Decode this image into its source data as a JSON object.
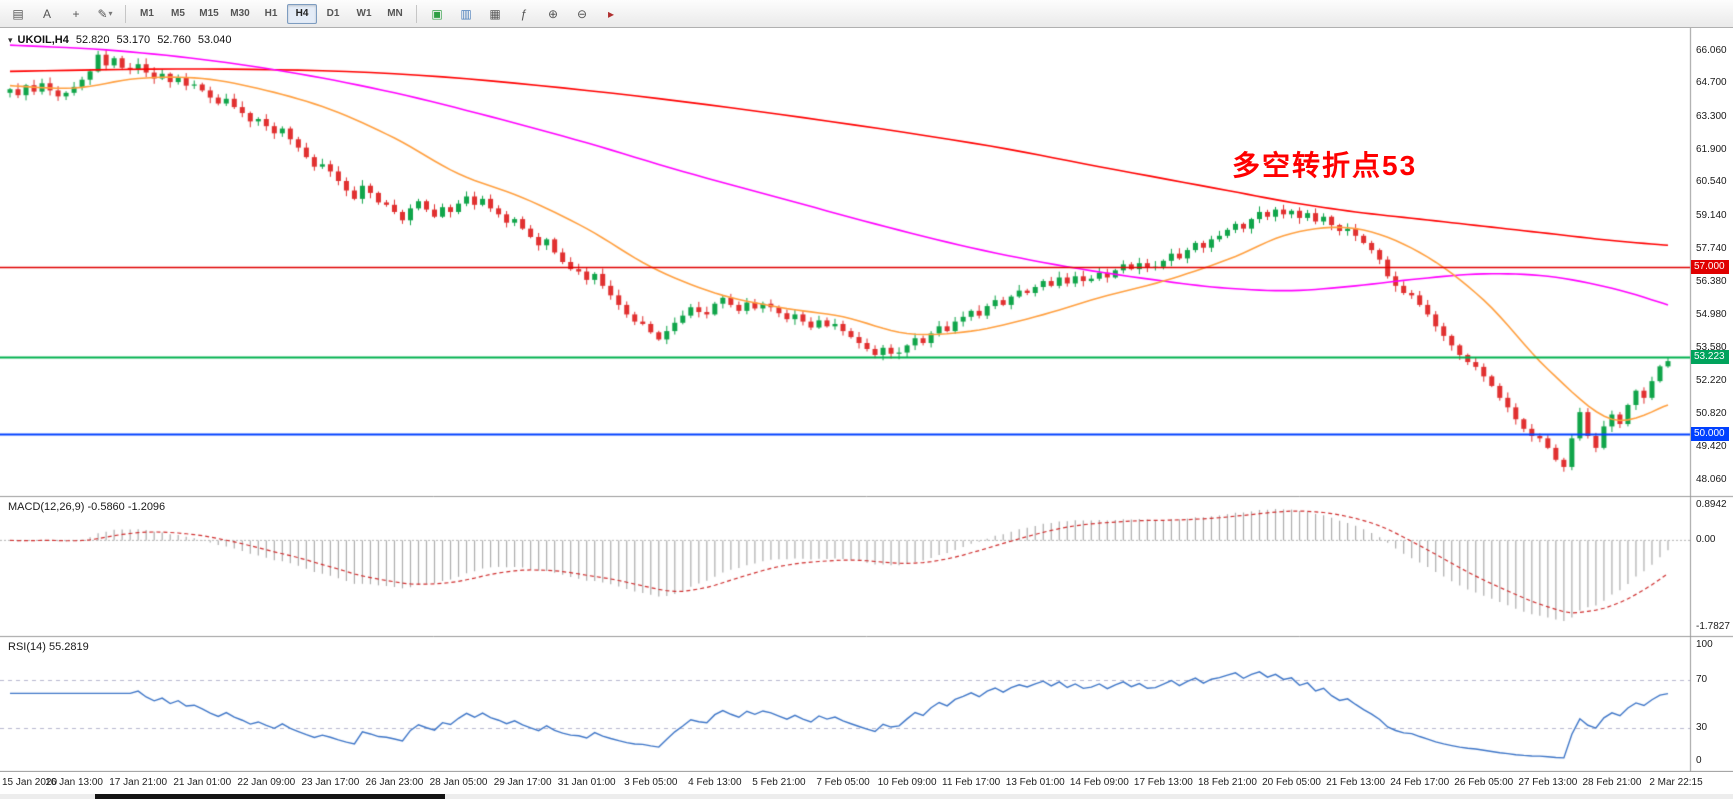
{
  "toolbar": {
    "icons_left": [
      {
        "name": "charts-panel-icon",
        "glyph": "▤"
      },
      {
        "name": "text-label-icon",
        "glyph": "A"
      },
      {
        "name": "crosshair-icon",
        "glyph": "+"
      },
      {
        "name": "draw-tools-icon",
        "glyph": "✎",
        "dropdown": "▾"
      }
    ],
    "timeframes": [
      "M1",
      "M5",
      "M15",
      "M30",
      "H1",
      "H4",
      "D1",
      "W1",
      "MN"
    ],
    "active_timeframe": "H4",
    "icons_right": [
      {
        "name": "new-chart-icon",
        "glyph": "▣",
        "color": "#2f9e44"
      },
      {
        "name": "chart-mode-icon",
        "glyph": "▥",
        "color": "#4a7ebb"
      },
      {
        "name": "tile-windows-icon",
        "glyph": "▦",
        "color": "#555555"
      },
      {
        "name": "indicators-icon",
        "glyph": "ƒ",
        "color": "#555555"
      },
      {
        "name": "zoom-in-icon",
        "glyph": "⊕",
        "color": "#555555"
      },
      {
        "name": "zoom-out-icon",
        "glyph": "⊖",
        "color": "#555555"
      },
      {
        "name": "auto-scroll-icon",
        "glyph": "▸",
        "color": "#b03030"
      }
    ]
  },
  "chart": {
    "collapse_icon": "▾",
    "title_symbol": "UKOIL,H4",
    "ohlc": {
      "open": "52.820",
      "high": "53.170",
      "low": "52.760",
      "close": "53.040"
    },
    "annotation": {
      "text": "多空转折点53",
      "color": "#FF0000"
    },
    "price_axis": [
      "66.060",
      "64.700",
      "63.300",
      "61.900",
      "60.540",
      "59.140",
      "57.740",
      "56.380",
      "54.980",
      "53.580",
      "52.220",
      "50.820",
      "49.420",
      "48.060"
    ],
    "price_tags": [
      {
        "label": "57.000",
        "price": 57.0,
        "bg": "#e00000"
      },
      {
        "label": "53.223",
        "price": 53.223,
        "bg": "#00a35c"
      },
      {
        "label": "50.000",
        "price": 50.0,
        "bg": "#0040ff"
      }
    ],
    "hlines": [
      {
        "price": 57.0,
        "color": "#e00000",
        "width": 1.4
      },
      {
        "price": 53.223,
        "color": "#00b14f",
        "width": 2
      },
      {
        "price": 50.0,
        "color": "#0040ff",
        "width": 2
      }
    ]
  },
  "macd_panel": {
    "label": "MACD(12,26,9)",
    "value_main": "-0.5860",
    "value_signal": "-1.2096",
    "axis": [
      "0.8942",
      "0.00",
      "-1.7827"
    ]
  },
  "rsi_panel": {
    "label": "RSI(14)",
    "value": "55.2819",
    "axis": [
      "100",
      "70",
      "30",
      "0"
    ]
  },
  "time_axis": [
    "15 Jan 2020",
    "16 Jan 13:00",
    "17 Jan 21:00",
    "21 Jan 01:00",
    "22 Jan 09:00",
    "23 Jan 17:00",
    "26 Jan 23:00",
    "28 Jan 05:00",
    "29 Jan 17:00",
    "31 Jan 01:00",
    "3 Feb 05:00",
    "4 Feb 13:00",
    "5 Feb 21:00",
    "7 Feb 05:00",
    "10 Feb 09:00",
    "11 Feb 17:00",
    "13 Feb 01:00",
    "14 Feb 09:00",
    "17 Feb 13:00",
    "18 Feb 21:00",
    "20 Feb 05:00",
    "21 Feb 13:00",
    "24 Feb 17:00",
    "26 Feb 05:00",
    "27 Feb 13:00",
    "28 Feb 21:00",
    "2 Mar 22:15"
  ],
  "chart_data": {
    "type": "candlestick+indicators",
    "symbol": "UKOIL",
    "timeframe": "H4",
    "price_range": [
      47.8,
      66.6
    ],
    "candles": {
      "first_open": 64.3,
      "up_color": "#10a54a",
      "down_color": "#e13030",
      "closes": [
        64.45,
        64.2,
        64.62,
        64.35,
        64.7,
        64.4,
        64.15,
        64.3,
        64.55,
        64.85,
        65.2,
        65.9,
        65.45,
        65.75,
        65.35,
        65.3,
        65.5,
        65.15,
        64.9,
        65.1,
        64.75,
        64.95,
        64.6,
        64.65,
        64.4,
        64.1,
        63.85,
        64.05,
        63.7,
        63.45,
        63.1,
        63.2,
        62.9,
        62.6,
        62.8,
        62.35,
        62.0,
        61.6,
        61.2,
        61.3,
        61.0,
        60.6,
        60.2,
        59.85,
        60.4,
        60.1,
        59.7,
        59.6,
        59.3,
        58.95,
        59.45,
        59.75,
        59.4,
        59.1,
        59.5,
        59.3,
        59.65,
        59.95,
        59.6,
        59.85,
        59.45,
        59.2,
        58.85,
        59.0,
        58.6,
        58.25,
        57.9,
        58.15,
        57.6,
        57.2,
        56.9,
        56.8,
        56.45,
        56.7,
        56.2,
        55.8,
        55.4,
        55.0,
        54.7,
        54.6,
        54.25,
        53.95,
        54.3,
        54.65,
        54.95,
        55.3,
        55.1,
        55.0,
        55.45,
        55.7,
        55.4,
        55.15,
        55.5,
        55.25,
        55.45,
        55.3,
        55.05,
        54.8,
        55.0,
        54.7,
        54.45,
        54.75,
        54.5,
        54.6,
        54.3,
        54.05,
        53.8,
        53.55,
        53.3,
        53.6,
        53.35,
        53.4,
        53.7,
        54.0,
        53.8,
        54.2,
        54.5,
        54.3,
        54.7,
        54.9,
        55.15,
        54.95,
        55.35,
        55.6,
        55.4,
        55.75,
        56.0,
        55.9,
        56.15,
        56.4,
        56.2,
        56.55,
        56.3,
        56.6,
        56.4,
        56.5,
        56.75,
        56.55,
        56.85,
        57.1,
        56.9,
        57.15,
        56.95,
        57.0,
        57.25,
        57.55,
        57.35,
        57.7,
        58.0,
        57.8,
        58.15,
        58.3,
        58.55,
        58.8,
        58.6,
        59.0,
        59.3,
        59.1,
        59.4,
        59.2,
        59.35,
        59.05,
        59.25,
        58.9,
        59.1,
        58.75,
        58.5,
        58.6,
        58.3,
        58.0,
        57.7,
        57.3,
        56.6,
        56.2,
        55.9,
        55.8,
        55.4,
        55.0,
        54.5,
        54.1,
        53.7,
        53.3,
        53.0,
        52.8,
        52.4,
        52.0,
        51.5,
        51.1,
        50.6,
        50.2,
        49.9,
        49.8,
        49.4,
        48.9,
        48.6,
        49.8,
        50.9,
        49.9,
        49.4,
        50.3,
        50.8,
        50.4,
        51.2,
        51.8,
        51.5,
        52.2,
        52.82,
        53.04
      ],
      "overrides": {
        "11": {
          "high": 66.06
        },
        "194": {
          "low": 48.4
        },
        "207": {
          "high": 53.17,
          "low": 52.76
        }
      }
    },
    "moving_averages": [
      {
        "name": "ma-slow",
        "color": "#ff0000",
        "anchors": [
          [
            0,
            65.2
          ],
          [
            24,
            65.3
          ],
          [
            48,
            65.1
          ],
          [
            72,
            64.4
          ],
          [
            96,
            63.4
          ],
          [
            120,
            62.2
          ],
          [
            136,
            61.2
          ],
          [
            152,
            60.2
          ],
          [
            160,
            59.7
          ],
          [
            168,
            59.3
          ],
          [
            176,
            59.0
          ],
          [
            184,
            58.7
          ],
          [
            192,
            58.4
          ],
          [
            200,
            58.1
          ],
          [
            207,
            57.9
          ]
        ]
      },
      {
        "name": "ma-mid",
        "color": "#ff00ff",
        "anchors": [
          [
            0,
            66.3
          ],
          [
            12,
            66.1
          ],
          [
            24,
            65.7
          ],
          [
            36,
            65.1
          ],
          [
            48,
            64.3
          ],
          [
            60,
            63.3
          ],
          [
            72,
            62.2
          ],
          [
            84,
            61.0
          ],
          [
            96,
            59.9
          ],
          [
            108,
            58.8
          ],
          [
            120,
            57.8
          ],
          [
            132,
            57.0
          ],
          [
            144,
            56.4
          ],
          [
            152,
            56.1
          ],
          [
            160,
            56.0
          ],
          [
            168,
            56.2
          ],
          [
            176,
            56.5
          ],
          [
            184,
            56.7
          ],
          [
            192,
            56.6
          ],
          [
            200,
            56.1
          ],
          [
            207,
            55.4
          ]
        ]
      },
      {
        "name": "ma-fast",
        "color": "#ffa040",
        "anchors": [
          [
            0,
            64.6
          ],
          [
            8,
            64.5
          ],
          [
            16,
            64.9
          ],
          [
            24,
            64.9
          ],
          [
            32,
            64.4
          ],
          [
            40,
            63.6
          ],
          [
            48,
            62.4
          ],
          [
            56,
            60.9
          ],
          [
            64,
            59.9
          ],
          [
            72,
            58.6
          ],
          [
            80,
            57.0
          ],
          [
            88,
            55.9
          ],
          [
            96,
            55.3
          ],
          [
            104,
            54.9
          ],
          [
            112,
            54.2
          ],
          [
            120,
            54.3
          ],
          [
            128,
            54.9
          ],
          [
            136,
            55.7
          ],
          [
            144,
            56.4
          ],
          [
            152,
            57.3
          ],
          [
            160,
            58.4
          ],
          [
            168,
            58.6
          ],
          [
            176,
            57.6
          ],
          [
            184,
            55.6
          ],
          [
            192,
            52.7
          ],
          [
            200,
            50.6
          ],
          [
            207,
            51.2
          ]
        ]
      }
    ],
    "macd": {
      "fast": 12,
      "slow": 26,
      "signal": 9,
      "hist_color": "#adadad",
      "signal_color": "#d03030"
    },
    "rsi": {
      "period": 14,
      "color": "#3e76c8",
      "levels": [
        70,
        30
      ],
      "level_color": "#b8b8cf"
    }
  }
}
